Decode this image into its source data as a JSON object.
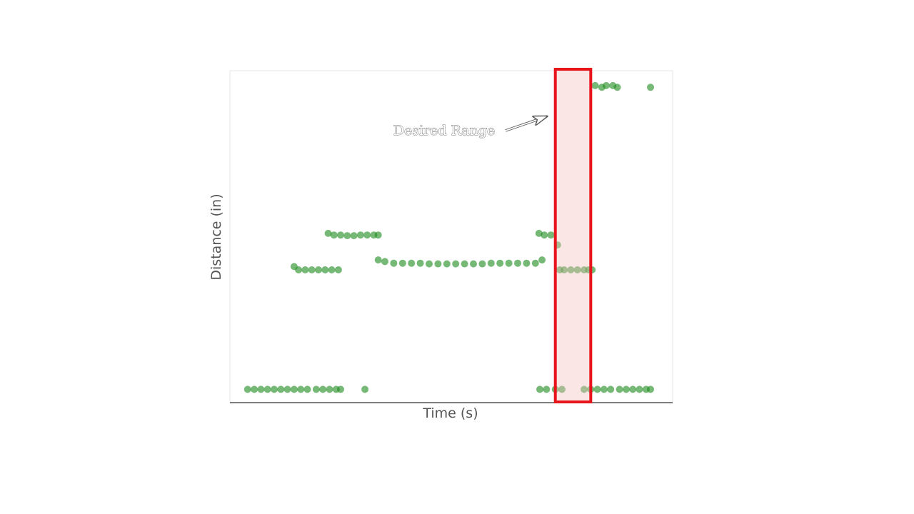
{
  "chart_data": {
    "type": "scatter",
    "xlabel": "Time (s)",
    "ylabel": "Distance (in)",
    "xlim": [
      0,
      100
    ],
    "ylim": [
      0,
      100
    ],
    "grid": false,
    "legend": "none",
    "series": [
      {
        "color": "#1a8a1a",
        "points": [
          [
            4,
            4
          ],
          [
            5.5,
            4
          ],
          [
            7,
            4
          ],
          [
            8.5,
            4
          ],
          [
            10,
            4
          ],
          [
            11.5,
            4
          ],
          [
            13,
            4
          ],
          [
            14.5,
            4
          ],
          [
            16,
            4
          ],
          [
            17.5,
            4
          ],
          [
            19.5,
            4
          ],
          [
            21,
            4
          ],
          [
            22.5,
            4
          ],
          [
            24,
            4
          ],
          [
            25,
            4
          ],
          [
            30.5,
            4
          ],
          [
            70,
            4
          ],
          [
            71.5,
            4
          ],
          [
            73.5,
            4
          ],
          [
            75,
            4
          ],
          [
            80,
            4
          ],
          [
            81.5,
            4
          ],
          [
            83,
            4
          ],
          [
            84.5,
            4
          ],
          [
            86,
            4
          ],
          [
            88,
            4
          ],
          [
            89.5,
            4
          ],
          [
            91,
            4
          ],
          [
            92.5,
            4
          ],
          [
            94,
            4
          ],
          [
            95,
            4
          ],
          [
            14.5,
            41
          ],
          [
            15.5,
            40
          ],
          [
            17,
            40
          ],
          [
            18.5,
            40
          ],
          [
            20,
            40
          ],
          [
            21.5,
            40
          ],
          [
            23,
            40
          ],
          [
            24.5,
            40
          ],
          [
            22.2,
            51
          ],
          [
            23.5,
            50.5
          ],
          [
            25,
            50.5
          ],
          [
            26.5,
            50.3
          ],
          [
            28,
            50.3
          ],
          [
            29.5,
            50.5
          ],
          [
            31,
            50.5
          ],
          [
            32.5,
            50.5
          ],
          [
            33.5,
            50.5
          ],
          [
            33.5,
            43
          ],
          [
            35,
            42.5
          ],
          [
            37,
            42
          ],
          [
            39,
            42
          ],
          [
            41,
            42
          ],
          [
            43,
            42
          ],
          [
            45,
            41.8
          ],
          [
            47,
            41.8
          ],
          [
            49,
            41.8
          ],
          [
            51,
            41.8
          ],
          [
            53,
            41.8
          ],
          [
            55,
            41.8
          ],
          [
            57,
            41.8
          ],
          [
            59,
            42
          ],
          [
            61,
            42
          ],
          [
            63,
            42
          ],
          [
            65,
            42
          ],
          [
            67,
            42
          ],
          [
            69,
            42
          ],
          [
            70.5,
            43
          ],
          [
            69.8,
            51
          ],
          [
            71,
            50.5
          ],
          [
            72.5,
            50.5
          ],
          [
            74,
            47.5
          ],
          [
            74.5,
            40
          ],
          [
            75.5,
            40
          ],
          [
            77,
            40
          ],
          [
            78.5,
            40
          ],
          [
            80,
            40
          ],
          [
            81,
            40
          ],
          [
            81.8,
            40
          ],
          [
            82.5,
            95.5
          ],
          [
            84,
            95
          ],
          [
            85,
            95.5
          ],
          [
            86.5,
            95.5
          ],
          [
            87.5,
            95
          ],
          [
            95,
            95
          ]
        ]
      }
    ],
    "annotation": {
      "text": "Desired Range",
      "highlight_x": [
        73.5,
        81.5
      ],
      "highlight_color": "#e8141c"
    }
  }
}
